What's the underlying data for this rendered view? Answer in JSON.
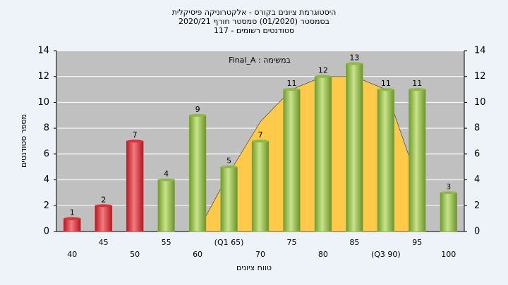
{
  "chart_data": {
    "type": "bar",
    "title_lines": [
      "היסטוגרמת ציונים בקורס - אלקטרוניקה פיסיקלית",
      "בסמסטר  (01/2020)  סמסטר חורף 2020/21",
      "סטודנטים רשומים - 117"
    ],
    "annotation": "Final_A : במשימה",
    "x_label": "טווח ציונים",
    "y_label": "מספר סטודנטים",
    "categories": [
      "40",
      "45",
      "50",
      "55",
      "60",
      "(Q1 65)",
      "70",
      "75",
      "80",
      "85",
      "(Q3 90)",
      "95",
      "100"
    ],
    "values": [
      1,
      2,
      7,
      4,
      9,
      5,
      7,
      11,
      12,
      13,
      11,
      11,
      3
    ],
    "colors": [
      "#d8323a",
      "#d8323a",
      "#d8323a",
      "#8fb84a",
      "#8fb84a",
      "#8fb84a",
      "#8fb84a",
      "#8fb84a",
      "#8fb84a",
      "#8fb84a",
      "#8fb84a",
      "#8fb84a",
      "#8fb84a"
    ],
    "curve": {
      "color": "#ffc94a",
      "values": [
        null,
        null,
        null,
        null,
        0,
        4.5,
        8.5,
        11,
        12,
        12,
        11,
        4,
        null
      ]
    },
    "ylim": [
      0,
      14
    ],
    "yticks": [
      0,
      2,
      4,
      6,
      8,
      10,
      12,
      14
    ],
    "y2lim": [
      0,
      14
    ],
    "y2ticks": [
      0,
      2,
      4,
      6,
      8,
      10,
      12,
      14
    ],
    "grid": true
  }
}
